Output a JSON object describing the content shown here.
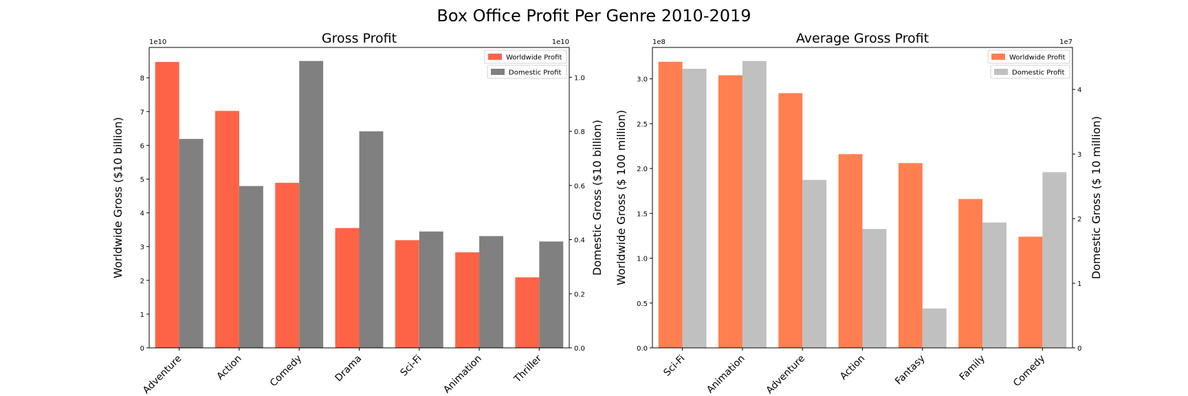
{
  "title": "Box Office Profit Per Genre 2010-2019",
  "chart_data": [
    {
      "type": "bar",
      "title": "Gross Profit",
      "categories": [
        "Adventure",
        "Action",
        "Comedy",
        "Drama",
        "Sci-Fi",
        "Animation",
        "Thriller"
      ],
      "left_axis": {
        "label": "Worldwide Gross ($10 billion)",
        "offset_text": "1e10",
        "ylim": [
          0,
          8.9
        ],
        "ticks": [
          "0",
          "1",
          "2",
          "3",
          "4",
          "5",
          "6",
          "7",
          "8"
        ]
      },
      "right_axis": {
        "label": "Domestic Gross ($10 billion)",
        "offset_text": "1e10",
        "ylim": [
          0,
          1.11
        ],
        "ticks": [
          "0.0",
          "0.2",
          "0.4",
          "0.6",
          "0.8",
          "1.0"
        ]
      },
      "series": [
        {
          "name": "Worldwide Profit",
          "axis": "left",
          "color": "#ff6347",
          "values": [
            8.47,
            7.02,
            4.89,
            3.55,
            3.19,
            2.83,
            2.09
          ]
        },
        {
          "name": "Domestic Profit",
          "axis": "right",
          "color": "#808080",
          "values": [
            0.772,
            0.598,
            1.06,
            0.8,
            0.43,
            0.413,
            0.393
          ]
        }
      ],
      "legend_position": "top-right"
    },
    {
      "type": "bar",
      "title": "Average Gross Profit",
      "categories": [
        "Sci-Fi",
        "Animation",
        "Adventure",
        "Action",
        "Fantasy",
        "Family",
        "Comedy"
      ],
      "left_axis": {
        "label": "Worldwide Gross ($ 100 million)",
        "offset_text": "1e8",
        "ylim": [
          0,
          3.35
        ],
        "ticks": [
          "0.0",
          "0.5",
          "1.0",
          "1.5",
          "2.0",
          "2.5",
          "3.0"
        ]
      },
      "right_axis": {
        "label": "Domestic Gross ($ 10 million)",
        "offset_text": "1e7",
        "ylim": [
          0,
          4.65
        ],
        "ticks": [
          "0",
          "1",
          "2",
          "3",
          "4"
        ]
      },
      "series": [
        {
          "name": "Worldwide Profit",
          "axis": "left",
          "color": "#ff7f50",
          "values": [
            3.19,
            3.04,
            2.84,
            2.16,
            2.06,
            1.66,
            1.24
          ]
        },
        {
          "name": "Domestic Profit",
          "axis": "right",
          "color": "#c0c0c0",
          "values": [
            4.32,
            4.44,
            2.6,
            1.84,
            0.61,
            1.94,
            2.72
          ]
        }
      ],
      "legend_position": "top-right"
    }
  ]
}
